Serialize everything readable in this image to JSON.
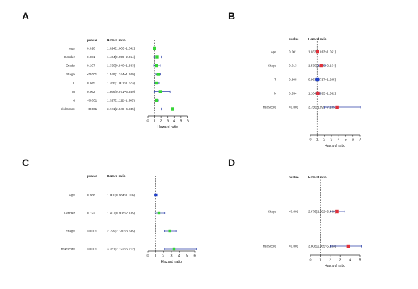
{
  "panel_labels": [
    "A",
    "B",
    "C",
    "D"
  ],
  "header_pvalue": "pvalue",
  "header_hr": "Hazard ratio",
  "chart_data": [
    {
      "type": "forest",
      "panel": "A",
      "xlabel": "Hazard ratio",
      "xlim": [
        0,
        7
      ],
      "ticks": [
        0,
        1,
        2,
        3,
        4,
        5,
        6
      ],
      "ref_line": 1,
      "rows": [
        {
          "label": "Age",
          "pvalue": "0.010",
          "hr_text": "1.024(1.006~1.042)",
          "hr": 1.024,
          "lo": 1.006,
          "hi": 1.042,
          "color": "#36d436"
        },
        {
          "label": "Gender",
          "pvalue": "0.081",
          "hr_text": "1.404(0.959~2.054)",
          "hr": 1.404,
          "lo": 0.959,
          "hi": 2.054,
          "color": "#36d436"
        },
        {
          "label": "Grade",
          "pvalue": "0.107",
          "hr_text": "1.330(0.940~1.883)",
          "hr": 1.33,
          "lo": 0.94,
          "hi": 1.883,
          "color": "#36d436"
        },
        {
          "label": "Stage",
          "pvalue": "<0.001",
          "hr_text": "1.549(1.244~1.929)",
          "hr": 1.549,
          "lo": 1.244,
          "hi": 1.929,
          "color": "#36d436"
        },
        {
          "label": "T",
          "pvalue": "0.045",
          "hr_text": "1.266(1.001~1.673)",
          "hr": 1.266,
          "lo": 1.001,
          "hi": 1.673,
          "color": "#36d436"
        },
        {
          "label": "M",
          "pvalue": "0.062",
          "hr_text": "1.866(0.971~3.359)",
          "hr": 1.866,
          "lo": 0.971,
          "hi": 3.359,
          "color": "#36d436"
        },
        {
          "label": "N",
          "pvalue": "<0.001",
          "hr_text": "1.327(1.112~1.585)",
          "hr": 1.327,
          "lo": 1.112,
          "hi": 1.585,
          "color": "#36d436"
        },
        {
          "label": "riskScore",
          "pvalue": "<0.001",
          "hr_text": "3.741(2.048~6.835)",
          "hr": 3.741,
          "lo": 2.048,
          "hi": 6.835,
          "color": "#36d436"
        }
      ]
    },
    {
      "type": "forest",
      "panel": "B",
      "xlabel": "Hazard ratio",
      "xlim": [
        0,
        7
      ],
      "ticks": [
        0,
        1,
        2,
        3,
        4,
        5,
        6,
        7
      ],
      "ref_line": 1,
      "rows": [
        {
          "label": "Age",
          "pvalue": "0.001",
          "hr_text": "1.033(1.013~1.051)",
          "hr": 1.033,
          "lo": 1.013,
          "hi": 1.051,
          "color": "#e0303a"
        },
        {
          "label": "Stage",
          "pvalue": "0.013",
          "hr_text": "1.530(1.095~2.154)",
          "hr": 1.53,
          "lo": 1.095,
          "hi": 2.154,
          "color": "#e0303a"
        },
        {
          "label": "T",
          "pvalue": "0.808",
          "hr_text": "0.963(0.717~1.295)",
          "hr": 0.963,
          "lo": 0.717,
          "hi": 1.295,
          "color": "#1f3fc8"
        },
        {
          "label": "N",
          "pvalue": "0.354",
          "hr_text": "1.104(0.895~1.362)",
          "hr": 1.104,
          "lo": 0.895,
          "hi": 1.362,
          "color": "#e0303a"
        },
        {
          "label": "riskScore",
          "pvalue": "<0.001",
          "hr_text": "3.756(1.999~7.105)",
          "hr": 3.756,
          "lo": 1.999,
          "hi": 7.105,
          "color": "#e0303a"
        }
      ]
    },
    {
      "type": "forest",
      "panel": "C",
      "xlabel": "Hazard ratio",
      "xlim": [
        0,
        6
      ],
      "ticks": [
        0,
        1,
        2,
        3,
        4,
        5,
        6
      ],
      "ref_line": 1,
      "rows": [
        {
          "label": "Age",
          "pvalue": "0.988",
          "hr_text": "1.000(0.984~1.016)",
          "hr": 1.0,
          "lo": 0.984,
          "hi": 1.016,
          "color": "#1f3fc8"
        },
        {
          "label": "Gender",
          "pvalue": "0.122",
          "hr_text": "1.407(0.908~2.185)",
          "hr": 1.407,
          "lo": 0.908,
          "hi": 2.185,
          "color": "#36d436"
        },
        {
          "label": "Stage",
          "pvalue": "<0.001",
          "hr_text": "2.799(2.140~3.635)",
          "hr": 2.799,
          "lo": 2.14,
          "hi": 3.635,
          "color": "#36d436"
        },
        {
          "label": "riskScore",
          "pvalue": "<0.001",
          "hr_text": "3.351(2.122~6.212)",
          "hr": 3.351,
          "lo": 2.122,
          "hi": 6.212,
          "color": "#36d436"
        }
      ]
    },
    {
      "type": "forest",
      "panel": "D",
      "xlabel": "Hazard ratio",
      "xlim": [
        0,
        5
      ],
      "ticks": [
        0,
        1,
        2,
        3,
        4,
        5
      ],
      "ref_line": 1,
      "rows": [
        {
          "label": "Stage",
          "pvalue": "<0.001",
          "hr_text": "2.676(1.992~3.489)",
          "hr": 2.676,
          "lo": 1.992,
          "hi": 3.489,
          "color": "#e0303a"
        },
        {
          "label": "riskScore",
          "pvalue": "<0.001",
          "hr_text": "3.808(2.065~5.183)",
          "hr": 3.808,
          "lo": 2.065,
          "hi": 5.183,
          "color": "#e0303a"
        }
      ]
    }
  ]
}
